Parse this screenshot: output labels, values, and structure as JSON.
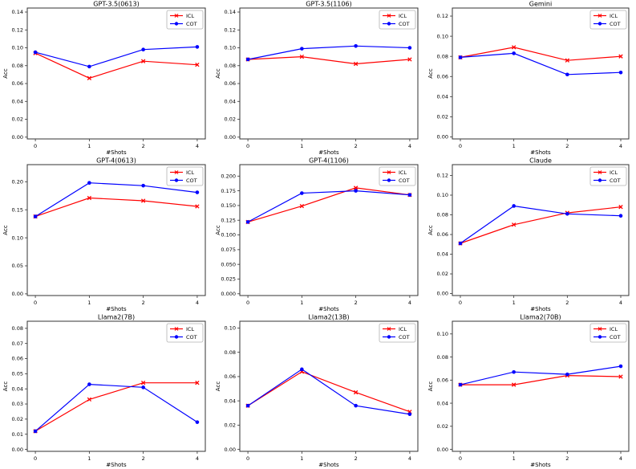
{
  "figure": {
    "xlabel": "#Shots",
    "ylabel": "Acc",
    "x_tick_labels": [
      "0",
      "1",
      "2",
      "4"
    ],
    "legend_entries": [
      "ICL",
      "COT"
    ],
    "colors": {
      "icl": "#ff0000",
      "cot": "#0000ff",
      "spine": "#333333",
      "text": "#000000",
      "legend_border": "#b3b3b3",
      "background": "#ffffff"
    }
  },
  "chart_data": [
    {
      "type": "line",
      "title": "GPT-3.5(0613)",
      "xlabel": "#Shots",
      "ylabel": "Acc",
      "x": [
        0,
        1,
        2,
        4
      ],
      "x_tick_labels": [
        "0",
        "1",
        "2",
        "4"
      ],
      "series": [
        {
          "name": "ICL",
          "color": "#ff0000",
          "marker": "x",
          "values": [
            0.094,
            0.066,
            0.085,
            0.081
          ]
        },
        {
          "name": "COT",
          "color": "#0000ff",
          "marker": "circle",
          "values": [
            0.095,
            0.079,
            0.098,
            0.101
          ]
        }
      ],
      "ylim": [
        -0.002,
        0.1445
      ],
      "yticks": [
        0.0,
        0.02,
        0.04,
        0.06,
        0.08,
        0.1,
        0.12,
        0.14
      ],
      "ytick_decimals": 2,
      "legend_position": "upper right",
      "grid": false
    },
    {
      "type": "line",
      "title": "GPT-3.5(1106)",
      "xlabel": "#Shots",
      "ylabel": "Acc",
      "x": [
        0,
        1,
        2,
        4
      ],
      "x_tick_labels": [
        "0",
        "1",
        "2",
        "4"
      ],
      "series": [
        {
          "name": "ICL",
          "color": "#ff0000",
          "marker": "x",
          "values": [
            0.087,
            0.09,
            0.082,
            0.087
          ]
        },
        {
          "name": "COT",
          "color": "#0000ff",
          "marker": "circle",
          "values": [
            0.087,
            0.099,
            0.102,
            0.1
          ]
        }
      ],
      "ylim": [
        -0.002,
        0.1445
      ],
      "yticks": [
        0.0,
        0.02,
        0.04,
        0.06,
        0.08,
        0.1,
        0.12,
        0.14
      ],
      "ytick_decimals": 2,
      "legend_position": "upper right",
      "grid": false
    },
    {
      "type": "line",
      "title": "Gemini",
      "xlabel": "#Shots",
      "ylabel": "Acc",
      "x": [
        0,
        1,
        2,
        4
      ],
      "x_tick_labels": [
        "0",
        "1",
        "2",
        "4"
      ],
      "series": [
        {
          "name": "ICL",
          "color": "#ff0000",
          "marker": "x",
          "values": [
            0.079,
            0.089,
            0.076,
            0.08
          ]
        },
        {
          "name": "COT",
          "color": "#0000ff",
          "marker": "circle",
          "values": [
            0.079,
            0.083,
            0.062,
            0.064
          ]
        }
      ],
      "ylim": [
        -0.002,
        0.128
      ],
      "yticks": [
        0.0,
        0.02,
        0.04,
        0.06,
        0.08,
        0.1,
        0.12
      ],
      "ytick_decimals": 2,
      "legend_position": "upper right",
      "grid": false
    },
    {
      "type": "line",
      "title": "GPT-4(0613)",
      "xlabel": "#Shots",
      "ylabel": "Acc",
      "x": [
        0,
        1,
        2,
        4
      ],
      "x_tick_labels": [
        "0",
        "1",
        "2",
        "4"
      ],
      "series": [
        {
          "name": "ICL",
          "color": "#ff0000",
          "marker": "x",
          "values": [
            0.138,
            0.171,
            0.166,
            0.156
          ]
        },
        {
          "name": "COT",
          "color": "#0000ff",
          "marker": "circle",
          "values": [
            0.138,
            0.198,
            0.193,
            0.181
          ]
        }
      ],
      "ylim": [
        -0.003,
        0.2305
      ],
      "yticks": [
        0.0,
        0.05,
        0.1,
        0.15,
        0.2
      ],
      "ytick_decimals": 2,
      "legend_position": "upper right",
      "grid": false
    },
    {
      "type": "line",
      "title": "GPT-4(1106)",
      "xlabel": "#Shots",
      "ylabel": "Acc",
      "x": [
        0,
        1,
        2,
        4
      ],
      "x_tick_labels": [
        "0",
        "1",
        "2",
        "4"
      ],
      "series": [
        {
          "name": "ICL",
          "color": "#ff0000",
          "marker": "x",
          "values": [
            0.122,
            0.149,
            0.18,
            0.168
          ]
        },
        {
          "name": "COT",
          "color": "#0000ff",
          "marker": "circle",
          "values": [
            0.122,
            0.171,
            0.175,
            0.168
          ]
        }
      ],
      "ylim": [
        -0.003,
        0.2195
      ],
      "yticks": [
        0.0,
        0.025,
        0.05,
        0.075,
        0.1,
        0.125,
        0.15,
        0.175,
        0.2
      ],
      "ytick_decimals": 3,
      "legend_position": "upper right",
      "grid": false
    },
    {
      "type": "line",
      "title": "Claude",
      "xlabel": "#Shots",
      "ylabel": "Acc",
      "x": [
        0,
        1,
        2,
        4
      ],
      "x_tick_labels": [
        "0",
        "1",
        "2",
        "4"
      ],
      "series": [
        {
          "name": "ICL",
          "color": "#ff0000",
          "marker": "x",
          "values": [
            0.051,
            0.07,
            0.082,
            0.088
          ]
        },
        {
          "name": "COT",
          "color": "#0000ff",
          "marker": "circle",
          "values": [
            0.051,
            0.089,
            0.081,
            0.079
          ]
        }
      ],
      "ylim": [
        -0.002,
        0.131
      ],
      "yticks": [
        0.0,
        0.02,
        0.04,
        0.06,
        0.08,
        0.1,
        0.12
      ],
      "ytick_decimals": 2,
      "legend_position": "upper right",
      "grid": false
    },
    {
      "type": "line",
      "title": "Llama2(7B)",
      "xlabel": "#Shots",
      "ylabel": "Acc",
      "x": [
        0,
        1,
        2,
        4
      ],
      "x_tick_labels": [
        "0",
        "1",
        "2",
        "4"
      ],
      "series": [
        {
          "name": "ICL",
          "color": "#ff0000",
          "marker": "x",
          "values": [
            0.012,
            0.033,
            0.044,
            0.044
          ]
        },
        {
          "name": "COT",
          "color": "#0000ff",
          "marker": "circle",
          "values": [
            0.012,
            0.043,
            0.041,
            0.018
          ]
        }
      ],
      "ylim": [
        -0.0013,
        0.0847
      ],
      "yticks": [
        0.0,
        0.01,
        0.02,
        0.03,
        0.04,
        0.05,
        0.06,
        0.07,
        0.08
      ],
      "ytick_decimals": 2,
      "legend_position": "upper right",
      "grid": false
    },
    {
      "type": "line",
      "title": "Llama2(13B)",
      "xlabel": "#Shots",
      "ylabel": "Acc",
      "x": [
        0,
        1,
        2,
        4
      ],
      "x_tick_labels": [
        "0",
        "1",
        "2",
        "4"
      ],
      "series": [
        {
          "name": "ICL",
          "color": "#ff0000",
          "marker": "x",
          "values": [
            0.036,
            0.064,
            0.047,
            0.031
          ]
        },
        {
          "name": "COT",
          "color": "#0000ff",
          "marker": "circle",
          "values": [
            0.036,
            0.066,
            0.036,
            0.029
          ]
        }
      ],
      "ylim": [
        -0.0016,
        0.1056
      ],
      "yticks": [
        0.0,
        0.02,
        0.04,
        0.06,
        0.08,
        0.1
      ],
      "ytick_decimals": 2,
      "legend_position": "upper right",
      "grid": false
    },
    {
      "type": "line",
      "title": "Llama2(70B)",
      "xlabel": "#Shots",
      "ylabel": "Acc",
      "x": [
        0,
        1,
        2,
        4
      ],
      "x_tick_labels": [
        "0",
        "1",
        "2",
        "4"
      ],
      "series": [
        {
          "name": "ICL",
          "color": "#ff0000",
          "marker": "x",
          "values": [
            0.056,
            0.056,
            0.064,
            0.063
          ]
        },
        {
          "name": "COT",
          "color": "#0000ff",
          "marker": "circle",
          "values": [
            0.056,
            0.067,
            0.065,
            0.072
          ]
        }
      ],
      "ylim": [
        -0.0017,
        0.111
      ],
      "yticks": [
        0.0,
        0.02,
        0.04,
        0.06,
        0.08,
        0.1
      ],
      "ytick_decimals": 2,
      "legend_position": "upper right",
      "grid": false
    }
  ]
}
